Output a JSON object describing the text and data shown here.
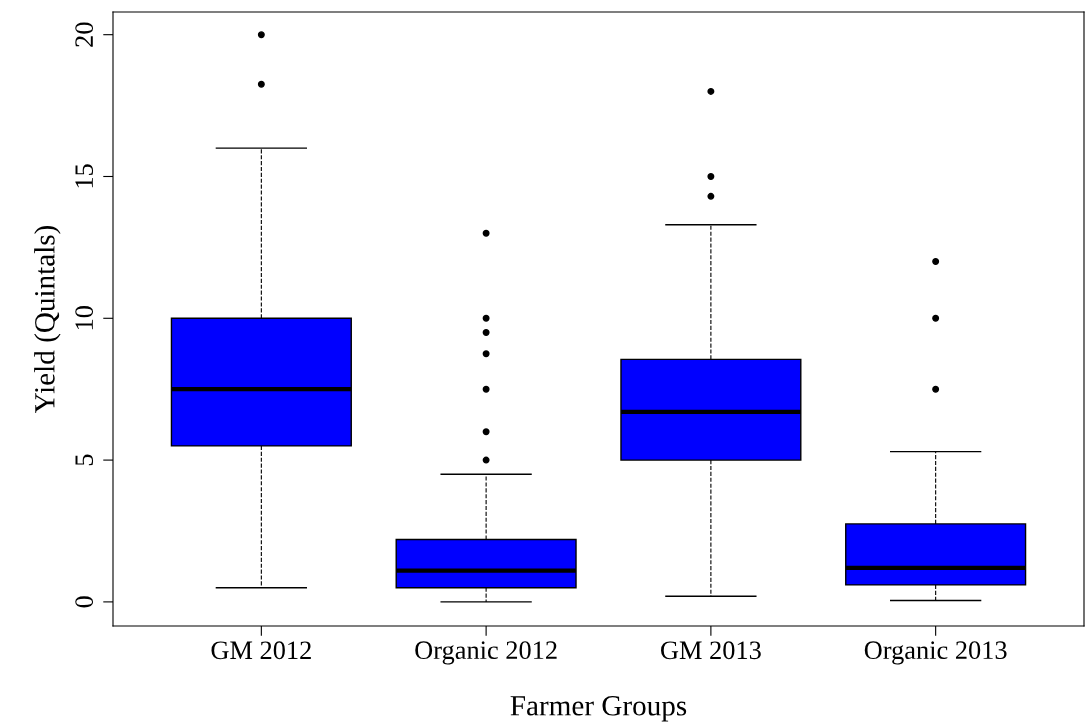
{
  "chart_data": {
    "type": "box",
    "xlabel": "Farmer Groups",
    "ylabel": "Yield (Quintals)",
    "categories": [
      "GM 2012",
      "Organic 2012",
      "GM 2013",
      "Organic 2013"
    ],
    "color": "#0000ff",
    "boxes": [
      {
        "low": 0.5,
        "q1": 5.5,
        "median": 7.5,
        "q3": 10,
        "high": 16,
        "outliers": [
          18.25,
          20
        ]
      },
      {
        "low": 0,
        "q1": 0.5,
        "median": 1.1,
        "q3": 2.2,
        "high": 4.5,
        "outliers": [
          5,
          6,
          7.5,
          8.75,
          9.5,
          10,
          13
        ]
      },
      {
        "low": 0.2,
        "q1": 5,
        "median": 6.7,
        "q3": 8.55,
        "high": 13.3,
        "outliers": [
          14.3,
          15,
          18
        ]
      },
      {
        "low": 0.05,
        "q1": 0.6,
        "median": 1.2,
        "q3": 2.75,
        "high": 5.3,
        "outliers": [
          7.5,
          10,
          12
        ]
      }
    ],
    "ylim": [
      -0.85,
      20.8
    ],
    "yticks": [
      0,
      5,
      10,
      15,
      20
    ],
    "grid": false,
    "line_style": "dashed"
  }
}
